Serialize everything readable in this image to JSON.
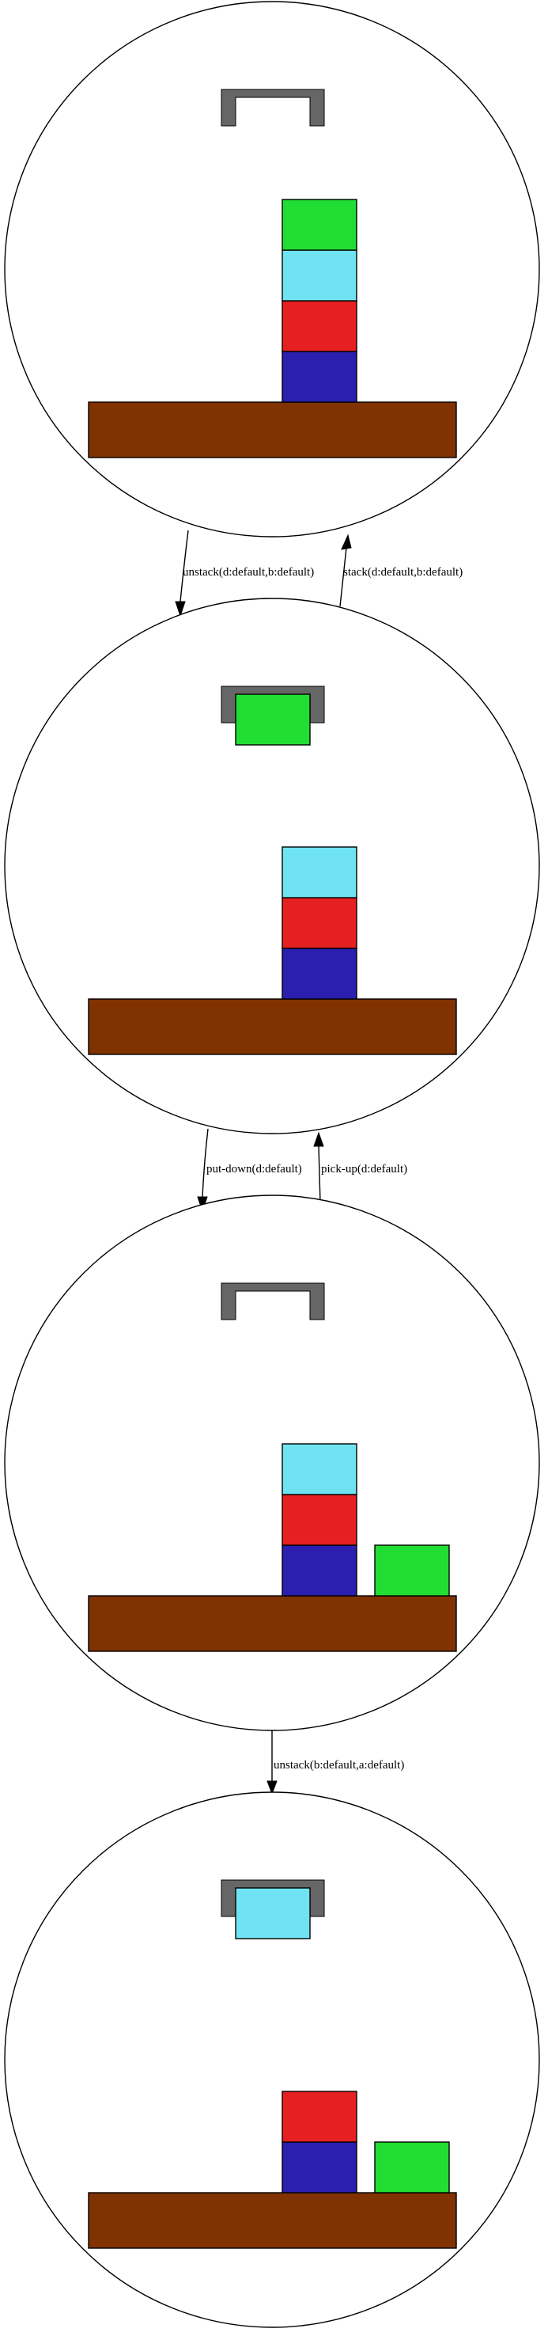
{
  "colors": {
    "d": "#22dd33",
    "b": "#70e3f3",
    "a": "#e62020",
    "c": "#2a1fae",
    "table": "#803300",
    "gripper": "#666666"
  },
  "states": [
    {
      "holding": null,
      "stacks": [
        [
          "c",
          "a",
          "b",
          "d"
        ]
      ]
    },
    {
      "holding": "d",
      "stacks": [
        [
          "c",
          "a",
          "b"
        ]
      ]
    },
    {
      "holding": null,
      "stacks": [
        [
          "c",
          "a",
          "b"
        ],
        [
          "d"
        ]
      ]
    },
    {
      "holding": "b",
      "stacks": [
        [
          "c",
          "a"
        ],
        [
          "d"
        ]
      ]
    }
  ],
  "edges": [
    {
      "from": 0,
      "to": 1,
      "label": "unstack(d:default,b:default)"
    },
    {
      "from": 1,
      "to": 0,
      "label": "stack(d:default,b:default)"
    },
    {
      "from": 1,
      "to": 2,
      "label": "put-down(d:default)"
    },
    {
      "from": 2,
      "to": 1,
      "label": "pick-up(d:default)"
    },
    {
      "from": 2,
      "to": 3,
      "label": "unstack(b:default,a:default)"
    }
  ]
}
